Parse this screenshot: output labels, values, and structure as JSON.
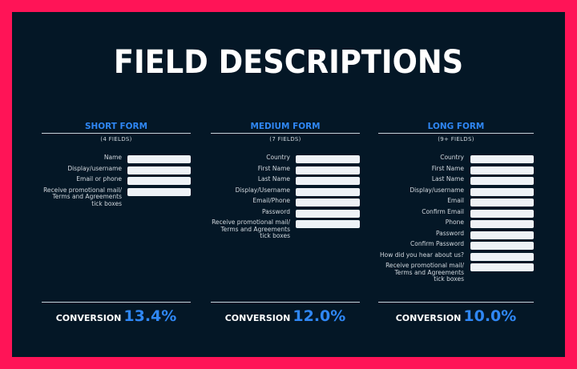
{
  "title": "FIELD DESCRIPTIONS",
  "columns": [
    {
      "heading": "SHORT FORM",
      "count": "(4 FIELDS)",
      "fields": [
        "Name",
        "Display/username",
        "Email or phone",
        "Receive promotional mail/\nTerms and Agreements\ntick boxes"
      ],
      "conversion_label": "CONVERSION",
      "conversion_value": "13.4%"
    },
    {
      "heading": "MEDIUM FORM",
      "count": "(7 FIELDS)",
      "fields": [
        "Country",
        "First Name",
        "Last Name",
        "Display/Username",
        "Email/Phone",
        "Password",
        "Receive promotional mail/\nTerms and Agreements\ntick boxes"
      ],
      "conversion_label": "CONVERSION",
      "conversion_value": "12.0%"
    },
    {
      "heading": "LONG FORM",
      "count": "(9+ FIELDS)",
      "fields": [
        "Country",
        "First Name",
        "Last Name",
        "Display/username",
        "Email",
        "Confirm Email",
        "Phone",
        "Password",
        "Confirm Password",
        "How did you hear about us?",
        "Receive promotional mail/\nTerms and Agreements\ntick boxes"
      ],
      "conversion_label": "CONVERSION",
      "conversion_value": "10.0%"
    }
  ],
  "colors": {
    "frame": "#ff1457",
    "background": "#041726",
    "accent": "#2f87f5",
    "text": "#ffffff"
  }
}
